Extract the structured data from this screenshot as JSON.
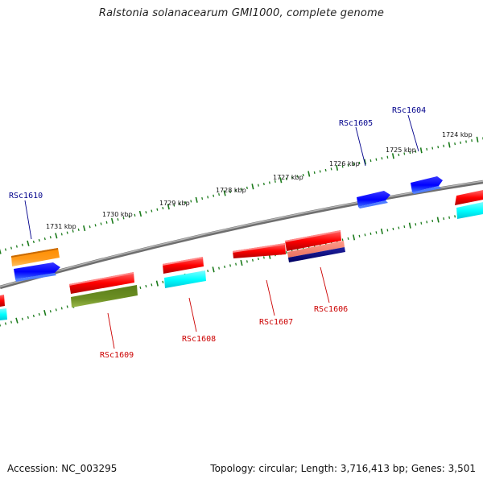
{
  "title": "Ralstonia solanacearum GMI1000, complete genome",
  "footer": {
    "accession": "Accession: NC_003295",
    "summary": "Topology: circular; Length: 3,716,413 bp; Genes: 3,501"
  },
  "colors": {
    "backbone": "#8a8a8a",
    "ticks": "#1a7a1a",
    "plus_label": "#00008b",
    "minus_label": "#cc0000",
    "red": "#ff0000",
    "blue": "#0000ff",
    "cyan": "#00ffff",
    "orange": "#ff8c00",
    "olive": "#6b8e23",
    "salmon": "#fa8072",
    "navy": "#000080"
  },
  "kbp_labels": [
    "1724 kbp",
    "1725 kbp",
    "1726 kbp",
    "1727 kbp",
    "1728 kbp",
    "1729 kbp",
    "1730 kbp",
    "1731 kbp"
  ],
  "gene_labels_plus": [
    "RSc1604",
    "RSc1605",
    "RSc1610"
  ],
  "gene_labels_minus": [
    "RSc1606",
    "RSc1607",
    "RSc1608",
    "RSc1609"
  ],
  "features_plus": [
    {
      "gene": "RSc1604",
      "color": "blue"
    },
    {
      "gene": "RSc1605",
      "color": "blue"
    },
    {
      "gene": "RSc1610",
      "color": "blue"
    },
    {
      "gene": "",
      "color": "orange"
    }
  ],
  "features_minus": [
    {
      "gene": "",
      "color": "red",
      "sub": "cyan"
    },
    {
      "gene": "RSc1606",
      "color": "red",
      "sub": "salmon",
      "sub2": "navy"
    },
    {
      "gene": "RSc1607",
      "color": "red"
    },
    {
      "gene": "RSc1608",
      "color": "red",
      "sub": "cyan"
    },
    {
      "gene": "RSc1609",
      "color": "red",
      "sub": "olive"
    },
    {
      "gene": "",
      "color": "red",
      "sub": "cyan"
    }
  ]
}
